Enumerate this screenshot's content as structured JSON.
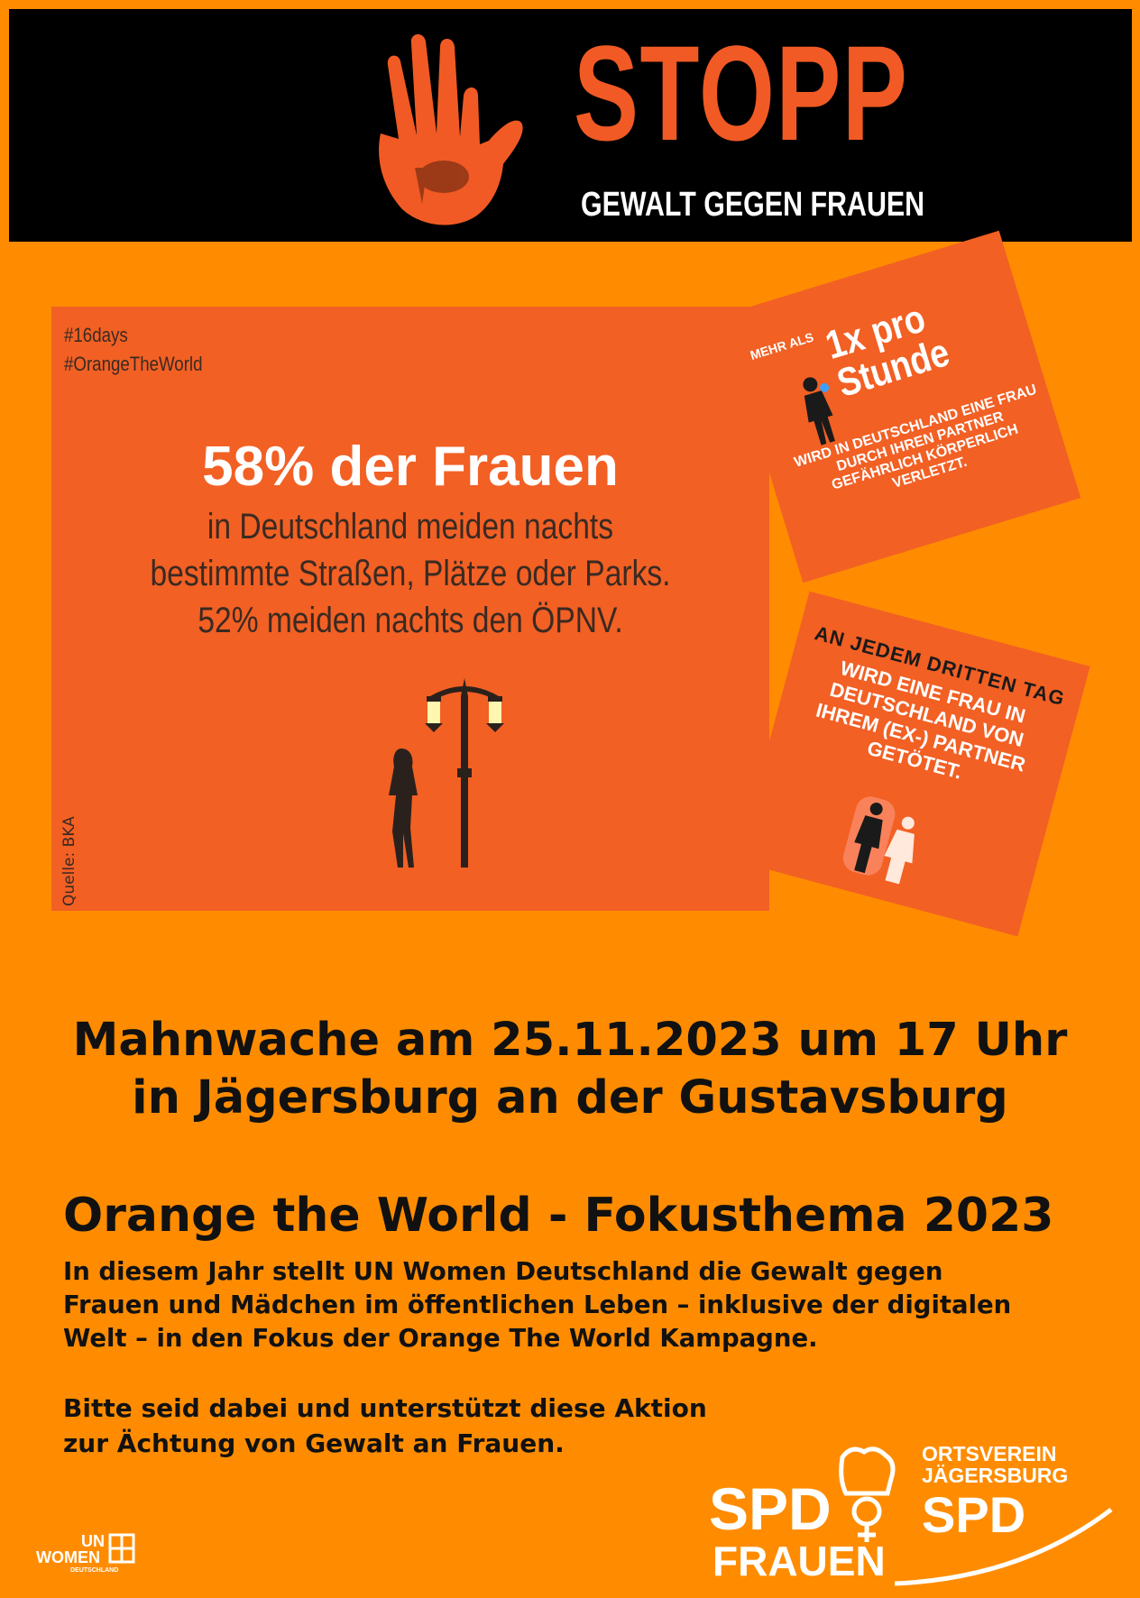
{
  "banner": {
    "title": "STOPP",
    "subtitle": "GEWALT GEGEN FRAUEN",
    "icon": "handprint-icon",
    "accent": "#f15a24"
  },
  "poster": {
    "hashtag1": "#16days",
    "hashtag2": "#OrangeTheWorld",
    "headline": "58% der Frauen",
    "lines": [
      "in Deutschland meiden nachts",
      "bestimmte Straßen, Plätze oder Parks.",
      "52% meiden nachts den ÖPNV."
    ],
    "source": "Quelle: BKA"
  },
  "card_hour": {
    "prefix": "MEHR ALS",
    "big1": "1x pro",
    "big2": "Stunde",
    "text": "WIRD IN DEUTSCHLAND EINE FRAU DURCH IHREN PARTNER GEFÄHRLICH KÖRPERLICH VERLETZT."
  },
  "card_day": {
    "heading": "AN JEDEM DRITTEN TAG",
    "lines": [
      "WIRD EINE FRAU IN",
      "DEUTSCHLAND VON",
      "IHREM (EX-) PARTNER",
      "GETÖTET."
    ]
  },
  "event": {
    "line1": "Mahnwache am 25.11.2023 um 17 Uhr",
    "line2": "in Jägersburg an der Gustavsburg"
  },
  "focus": {
    "title": "Orange the World - Fokusthema 2023",
    "lines": [
      "In diesem Jahr stellt UN Women Deutschland die Gewalt gegen",
      "Frauen und Mädchen im öffentlichen Leben – inklusive der digitalen",
      "Welt – in den Fokus der Orange The World Kampagne."
    ]
  },
  "support": {
    "line1": "Bitte seid dabei und unterstützt diese Aktion",
    "line2": "zur Ächtung von Gewalt an Frauen."
  },
  "logos": {
    "unwomen_un": "UN",
    "unwomen_women": "WOMEN",
    "unwomen_country": "DEUTSCHLAND",
    "spd_frauen_spd": "SPD",
    "spd_frauen_frauen": "FRAUEN",
    "ov_line1": "ORTSVEREIN",
    "ov_line2": "JÄGERSBURG",
    "ov_spd": "SPD"
  }
}
